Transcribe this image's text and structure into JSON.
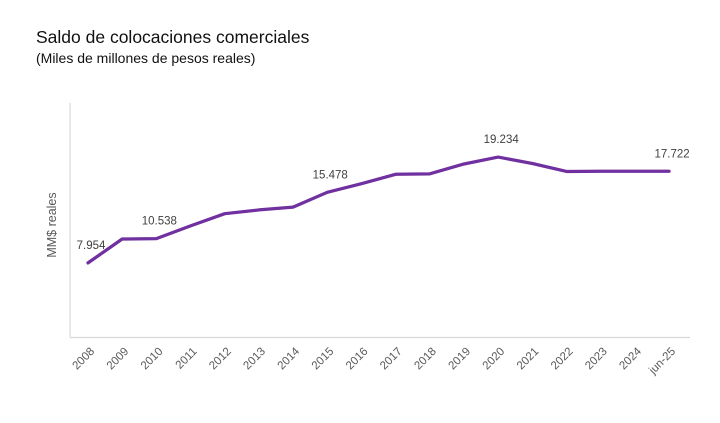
{
  "header": {
    "title": "Saldo de colocaciones comerciales",
    "subtitle": "(Miles de millones de pesos reales)"
  },
  "chart_data": {
    "type": "line",
    "title": "Saldo de colocaciones comerciales",
    "subtitle": "(Miles de millones de pesos reales)",
    "xlabel": "",
    "ylabel": "MM$ reales",
    "categories": [
      "2008",
      "2009",
      "2010",
      "2011",
      "2012",
      "2013",
      "2014",
      "2015",
      "2016",
      "2017",
      "2018",
      "2019",
      "2020",
      "2021",
      "2022",
      "2023",
      "2024",
      "jun-25"
    ],
    "series": [
      {
        "name": "Saldo de colocaciones comerciales",
        "color": "#7030A0",
        "values": [
          7.954,
          10.5,
          10.538,
          11.9,
          13.2,
          13.6,
          13.9,
          15.478,
          16.4,
          17.4,
          17.45,
          18.5,
          19.234,
          18.55,
          17.7,
          17.72,
          17.73,
          17.722
        ],
        "data_labels": [
          "7.954",
          null,
          "10.538",
          null,
          null,
          null,
          null,
          "15.478",
          null,
          null,
          null,
          null,
          "19.234",
          null,
          null,
          null,
          null,
          "17.722"
        ]
      }
    ],
    "ylim": [
      0,
      25
    ],
    "grid": false,
    "legend": "none",
    "colors": {
      "line": "#7030A0",
      "axis": "#D9D9D9",
      "tick_label": "#595959",
      "data_label": "#404040",
      "axis_title": "#595959"
    }
  }
}
